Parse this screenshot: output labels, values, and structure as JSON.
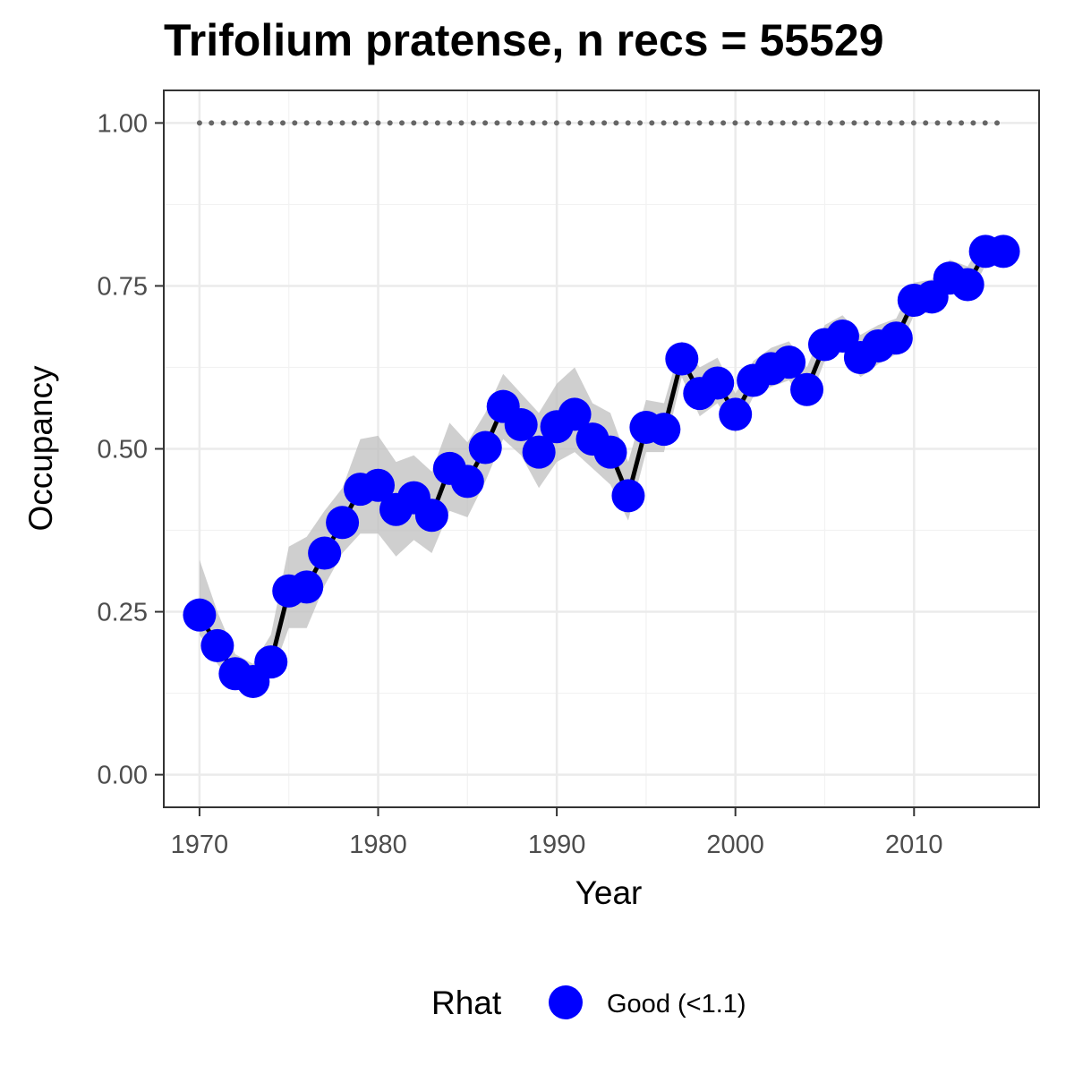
{
  "chart_data": {
    "type": "line",
    "title": "Trifolium pratense, n recs = 55529",
    "xlabel": "Year",
    "ylabel": "Occupancy",
    "xlim": [
      1968,
      2017
    ],
    "ylim": [
      -0.05,
      1.05
    ],
    "x_ticks": [
      1970,
      1980,
      1990,
      2000,
      2010
    ],
    "x_tick_labels": [
      "1970",
      "1980",
      "1990",
      "2000",
      "2010"
    ],
    "y_ticks": [
      0,
      0.25,
      0.5,
      0.75,
      1.0
    ],
    "y_tick_labels": [
      "0.00",
      "0.25",
      "0.50",
      "0.75",
      "1.00"
    ],
    "grid": true,
    "reference_line": {
      "y": 1.0,
      "style": "dotted",
      "color": "#666666"
    },
    "series": [
      {
        "x": [
          1970,
          1971,
          1972,
          1973,
          1974,
          1975,
          1976,
          1977,
          1978,
          1979,
          1980,
          1981,
          1982,
          1983,
          1984,
          1985,
          1986,
          1987,
          1988,
          1989,
          1990,
          1991,
          1992,
          1993,
          1994,
          1995,
          1996,
          1997,
          1998,
          1999,
          2000,
          2001,
          2002,
          2003,
          2004,
          2005,
          2006,
          2007,
          2008,
          2009,
          2010,
          2011,
          2012,
          2013,
          2014,
          2015
        ],
        "y": [
          0.245,
          0.198,
          0.155,
          0.143,
          0.173,
          0.282,
          0.288,
          0.34,
          0.387,
          0.438,
          0.444,
          0.407,
          0.425,
          0.398,
          0.47,
          0.45,
          0.502,
          0.565,
          0.537,
          0.495,
          0.534,
          0.553,
          0.515,
          0.495,
          0.428,
          0.533,
          0.53,
          0.638,
          0.585,
          0.601,
          0.553,
          0.605,
          0.623,
          0.633,
          0.591,
          0.66,
          0.673,
          0.64,
          0.658,
          0.67,
          0.728,
          0.733,
          0.762,
          0.752,
          0.803,
          0.803
        ],
        "lower": [
          0.215,
          0.17,
          0.135,
          0.125,
          0.15,
          0.225,
          0.225,
          0.29,
          0.34,
          0.37,
          0.37,
          0.335,
          0.36,
          0.34,
          0.405,
          0.395,
          0.45,
          0.515,
          0.49,
          0.44,
          0.48,
          0.495,
          0.47,
          0.445,
          0.39,
          0.495,
          0.495,
          0.61,
          0.55,
          0.57,
          0.525,
          0.58,
          0.595,
          0.605,
          0.565,
          0.635,
          0.65,
          0.61,
          0.63,
          0.645,
          0.705,
          0.71,
          0.74,
          0.728,
          0.782,
          0.782
        ],
        "upper": [
          0.33,
          0.25,
          0.185,
          0.17,
          0.215,
          0.35,
          0.365,
          0.405,
          0.44,
          0.515,
          0.52,
          0.48,
          0.49,
          0.465,
          0.54,
          0.51,
          0.555,
          0.615,
          0.585,
          0.555,
          0.6,
          0.625,
          0.57,
          0.555,
          0.48,
          0.575,
          0.57,
          0.665,
          0.625,
          0.64,
          0.585,
          0.635,
          0.655,
          0.665,
          0.625,
          0.69,
          0.705,
          0.675,
          0.69,
          0.7,
          0.755,
          0.76,
          0.79,
          0.78,
          0.825,
          0.825
        ]
      }
    ],
    "point_color": "#0000ff",
    "line_color": "#000000",
    "band_color": "#bfbfbf",
    "legend": {
      "title": "Rhat",
      "placement": "bottom",
      "entries": [
        {
          "label": "Good (<1.1)",
          "color": "#0000ff"
        }
      ]
    }
  }
}
